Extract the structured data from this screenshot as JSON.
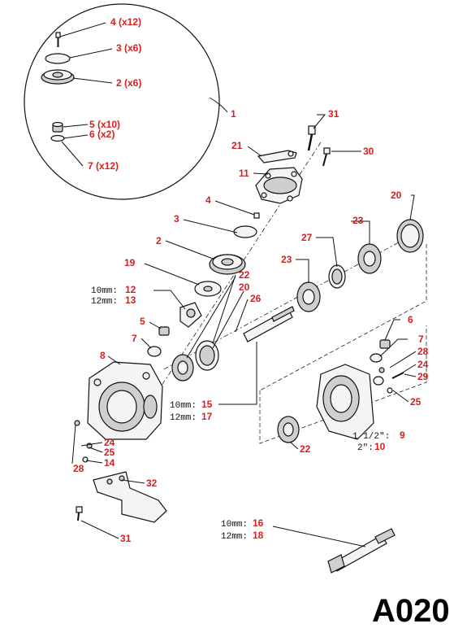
{
  "diagram": {
    "reference_code": "A020",
    "detail_labels": [
      {
        "id": "d4",
        "text": "4 (x12)"
      },
      {
        "id": "d3",
        "text": "3 (x6)"
      },
      {
        "id": "d2",
        "text": "2 (x6)"
      },
      {
        "id": "d5",
        "text": "5 (x10)"
      },
      {
        "id": "d6",
        "text": "6 (x2)"
      },
      {
        "id": "d7",
        "text": "7 (x12)"
      }
    ],
    "callouts": [
      "1",
      "31",
      "21",
      "30",
      "11",
      "4",
      "3",
      "20",
      "2",
      "23",
      "27",
      "19",
      "23",
      "22",
      "20",
      "26",
      "5",
      "7",
      "8",
      "6",
      "7",
      "28",
      "24",
      "29",
      "25",
      "22",
      "24",
      "25",
      "14",
      "28",
      "32",
      "31"
    ],
    "size_notes": [
      {
        "size": "10mm:",
        "part": "12"
      },
      {
        "size": "12mm:",
        "part": "13"
      },
      {
        "size": "10mm:",
        "part": "15"
      },
      {
        "size": "12mm:",
        "part": "17"
      },
      {
        "size": "1 1/2\":",
        "part": "9"
      },
      {
        "size": "2\":",
        "part": "10"
      },
      {
        "size": "10mm:",
        "part": "16"
      },
      {
        "size": "12mm:",
        "part": "18"
      }
    ]
  }
}
